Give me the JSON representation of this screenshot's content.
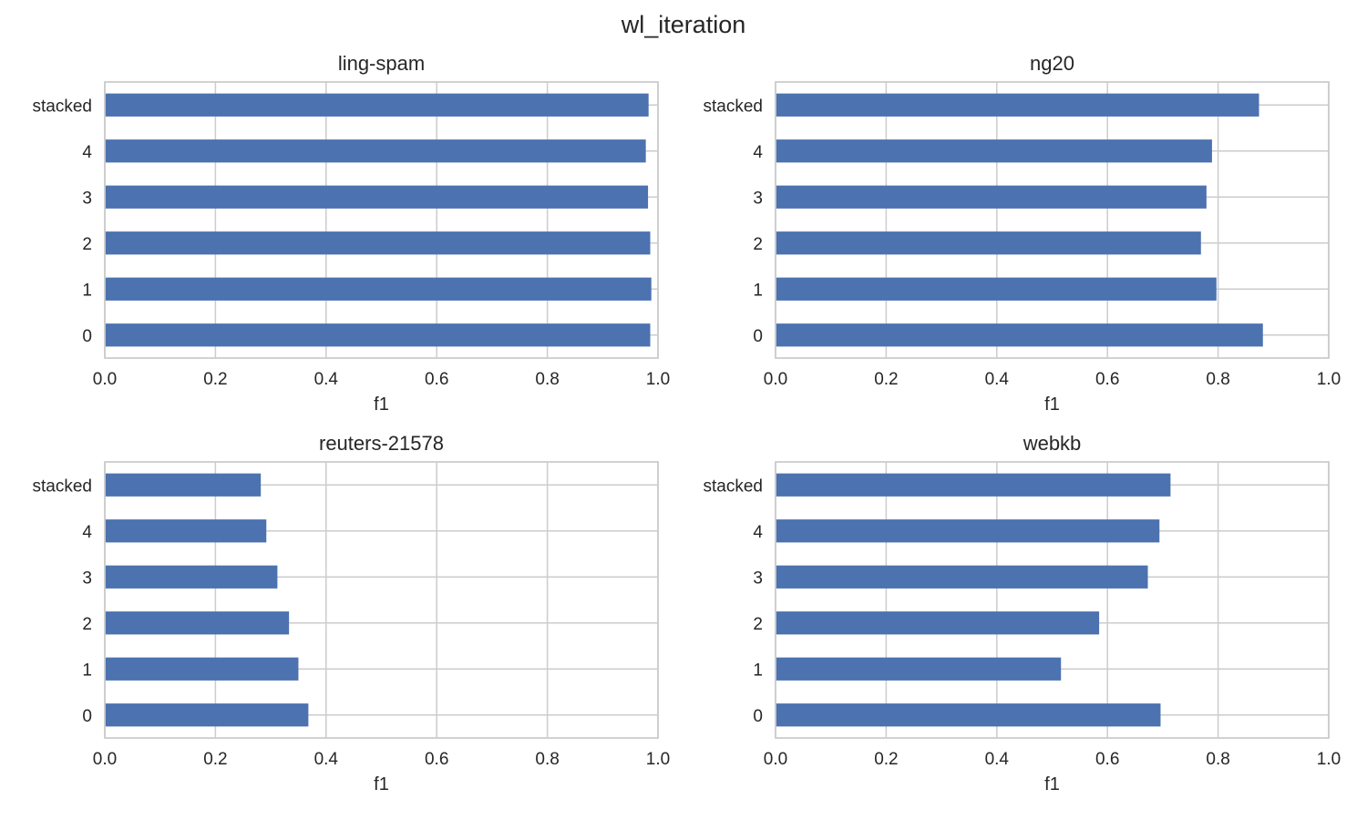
{
  "figure": {
    "title": "wl_iteration"
  },
  "colors": {
    "bar": "#4c72b0",
    "grid": "#cccccc",
    "frame": "#cccccc",
    "text": "#262626"
  },
  "chart_data": [
    {
      "type": "bar",
      "orientation": "horizontal",
      "title": "ling-spam",
      "xlabel": "f1",
      "ylabel": "",
      "xlim": [
        0.0,
        1.0
      ],
      "xticks": [
        "0.0",
        "0.2",
        "0.4",
        "0.6",
        "0.8",
        "1.0"
      ],
      "categories": [
        "0",
        "1",
        "2",
        "3",
        "4",
        "stacked"
      ],
      "values": [
        0.986,
        0.988,
        0.986,
        0.982,
        0.978,
        0.983
      ],
      "grid": true
    },
    {
      "type": "bar",
      "orientation": "horizontal",
      "title": "ng20",
      "xlabel": "f1",
      "ylabel": "",
      "xlim": [
        0.0,
        1.0
      ],
      "xticks": [
        "0.0",
        "0.2",
        "0.4",
        "0.6",
        "0.8",
        "1.0"
      ],
      "categories": [
        "0",
        "1",
        "2",
        "3",
        "4",
        "stacked"
      ],
      "values": [
        0.881,
        0.797,
        0.769,
        0.779,
        0.789,
        0.874
      ],
      "grid": true
    },
    {
      "type": "bar",
      "orientation": "horizontal",
      "title": "reuters-21578",
      "xlabel": "f1",
      "ylabel": "",
      "xlim": [
        0.0,
        1.0
      ],
      "xticks": [
        "0.0",
        "0.2",
        "0.4",
        "0.6",
        "0.8",
        "1.0"
      ],
      "categories": [
        "0",
        "1",
        "2",
        "3",
        "4",
        "stacked"
      ],
      "values": [
        0.368,
        0.35,
        0.333,
        0.312,
        0.292,
        0.282
      ],
      "grid": true
    },
    {
      "type": "bar",
      "orientation": "horizontal",
      "title": "webkb",
      "xlabel": "f1",
      "ylabel": "",
      "xlim": [
        0.0,
        1.0
      ],
      "xticks": [
        "0.0",
        "0.2",
        "0.4",
        "0.6",
        "0.8",
        "1.0"
      ],
      "categories": [
        "0",
        "1",
        "2",
        "3",
        "4",
        "stacked"
      ],
      "values": [
        0.696,
        0.516,
        0.585,
        0.673,
        0.694,
        0.714
      ],
      "grid": true
    }
  ]
}
